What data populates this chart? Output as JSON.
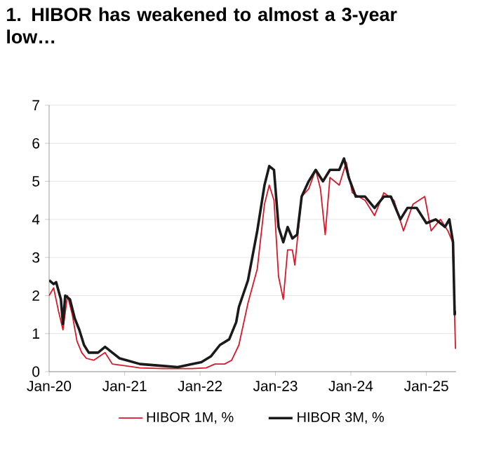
{
  "chart_data": {
    "type": "line",
    "title": "1. HIBOR has weakened to almost a 3-year low…",
    "xlim": [
      "2020-01-01",
      "2025-05-25"
    ],
    "ylim": [
      0,
      7
    ],
    "yticks": [
      0,
      1,
      2,
      3,
      4,
      5,
      6,
      7
    ],
    "xticks": [
      {
        "value": "2020-01-01",
        "label": "Jan-20"
      },
      {
        "value": "2021-01-01",
        "label": "Jan-21"
      },
      {
        "value": "2022-01-01",
        "label": "Jan-22"
      },
      {
        "value": "2023-01-01",
        "label": "Jan-23"
      },
      {
        "value": "2024-01-01",
        "label": "Jan-24"
      },
      {
        "value": "2025-01-01",
        "label": "Jan-25"
      }
    ],
    "grid": "y",
    "legend": "bottom",
    "marker": "none",
    "line_style": "solid",
    "series": [
      {
        "name": "HIBOR 1M, %",
        "color": "#d7182a",
        "x": [
          "2020-01-01",
          "2020-01-23",
          "2020-02-15",
          "2020-03-08",
          "2020-03-30",
          "2020-04-22",
          "2020-05-15",
          "2020-06-07",
          "2020-06-29",
          "2020-08-04",
          "2020-09-28",
          "2020-11-02",
          "2021-01-10",
          "2021-03-16",
          "2021-07-08",
          "2021-11-22",
          "2022-01-30",
          "2022-03-14",
          "2022-04-30",
          "2022-06-03",
          "2022-07-08",
          "2022-08-21",
          "2022-10-05",
          "2022-11-09",
          "2022-12-02",
          "2022-12-25",
          "2023-01-16",
          "2023-02-08",
          "2023-03-01",
          "2023-03-24",
          "2023-04-05",
          "2023-05-08",
          "2023-06-11",
          "2023-07-15",
          "2023-08-07",
          "2023-08-30",
          "2023-09-22",
          "2023-11-06",
          "2023-12-10",
          "2024-01-08",
          "2024-03-10",
          "2024-04-25",
          "2024-06-09",
          "2024-07-28",
          "2024-09-12",
          "2024-10-28",
          "2024-12-24",
          "2025-01-24",
          "2025-03-10",
          "2025-04-15",
          "2025-05-08",
          "2025-05-22"
        ],
        "values": [
          2.0,
          2.2,
          1.6,
          1.1,
          2.0,
          1.5,
          0.8,
          0.5,
          0.35,
          0.3,
          0.5,
          0.2,
          0.15,
          0.1,
          0.08,
          0.08,
          0.1,
          0.2,
          0.2,
          0.3,
          0.7,
          1.8,
          2.7,
          4.4,
          4.9,
          4.5,
          2.5,
          1.9,
          3.2,
          3.2,
          2.8,
          4.6,
          4.8,
          5.3,
          4.8,
          3.6,
          5.1,
          4.9,
          5.5,
          4.7,
          4.5,
          4.1,
          4.7,
          4.5,
          3.7,
          4.4,
          4.6,
          3.7,
          4.0,
          3.7,
          3.4,
          0.6
        ]
      },
      {
        "name": "HIBOR 3M, %",
        "color": "#1a1a1a",
        "x": [
          "2020-01-01",
          "2020-01-23",
          "2020-02-04",
          "2020-02-27",
          "2020-03-08",
          "2020-03-19",
          "2020-04-11",
          "2020-05-04",
          "2020-05-26",
          "2020-06-18",
          "2020-07-11",
          "2020-08-25",
          "2020-09-28",
          "2020-11-02",
          "2020-12-07",
          "2021-01-10",
          "2021-03-16",
          "2021-07-08",
          "2021-09-15",
          "2021-11-22",
          "2022-01-07",
          "2022-02-22",
          "2022-04-07",
          "2022-05-22",
          "2022-06-25",
          "2022-07-08",
          "2022-08-21",
          "2022-10-05",
          "2022-11-09",
          "2022-12-02",
          "2022-12-25",
          "2023-01-16",
          "2023-02-08",
          "2023-03-01",
          "2023-03-24",
          "2023-04-16",
          "2023-05-08",
          "2023-06-11",
          "2023-07-15",
          "2023-08-19",
          "2023-09-22",
          "2023-11-06",
          "2023-11-29",
          "2023-12-22",
          "2024-01-25",
          "2024-03-10",
          "2024-04-25",
          "2024-06-09",
          "2024-07-13",
          "2024-08-28",
          "2024-10-01",
          "2024-11-15",
          "2025-01-01",
          "2025-02-15",
          "2025-04-01",
          "2025-04-22",
          "2025-05-10",
          "2025-05-18",
          "2025-05-22"
        ],
        "values": [
          2.4,
          2.3,
          2.35,
          1.9,
          1.25,
          2.0,
          1.9,
          1.4,
          1.1,
          0.7,
          0.5,
          0.5,
          0.65,
          0.5,
          0.35,
          0.3,
          0.2,
          0.15,
          0.12,
          0.2,
          0.25,
          0.4,
          0.7,
          0.85,
          1.3,
          1.7,
          2.4,
          3.7,
          4.9,
          5.4,
          5.3,
          3.8,
          3.4,
          3.8,
          3.5,
          3.6,
          4.6,
          5.0,
          5.3,
          5.0,
          5.3,
          5.3,
          5.6,
          5.1,
          4.6,
          4.6,
          4.3,
          4.6,
          4.6,
          4.0,
          4.3,
          4.3,
          3.9,
          4.0,
          3.8,
          4.0,
          3.4,
          1.5,
          1.6
        ]
      }
    ]
  }
}
